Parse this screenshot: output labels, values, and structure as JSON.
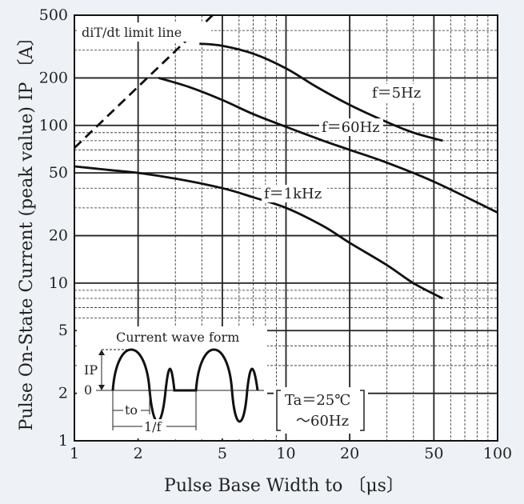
{
  "chart_data": {
    "type": "line",
    "xlabel": "Pulse Base Width  to 〔μs〕",
    "ylabel": "Pulse On-State Current (peak value)  IP 〔A〕",
    "x_scale": "log",
    "y_scale": "log",
    "xlim": [
      1,
      100
    ],
    "ylim": [
      1,
      500
    ],
    "x_ticks": [
      1,
      2,
      5,
      10,
      20,
      50,
      100
    ],
    "x_tick_labels": [
      "1",
      "2",
      "5",
      "10",
      "20",
      "50",
      "100"
    ],
    "y_ticks": [
      1,
      2,
      5,
      10,
      20,
      50,
      100,
      200,
      500
    ],
    "y_tick_labels": [
      "1",
      "2",
      "5",
      "10",
      "20",
      "50",
      "100",
      "200",
      "500"
    ],
    "grid": true,
    "series": [
      {
        "name": "f＝5Hz",
        "x": [
          3.9,
          5,
          7,
          10,
          14,
          20,
          30,
          40,
          55
        ],
        "y": [
          330,
          320,
          285,
          230,
          175,
          135,
          105,
          90,
          80
        ]
      },
      {
        "name": "f＝60Hz",
        "x": [
          2.5,
          3.5,
          5,
          7,
          10,
          15,
          20,
          30,
          50,
          100
        ],
        "y": [
          200,
          175,
          145,
          118,
          98,
          80,
          70,
          58,
          44,
          28
        ]
      },
      {
        "name": "f＝1kHz",
        "x": [
          1,
          1.5,
          2,
          3,
          5,
          7,
          10,
          15,
          20,
          30,
          40,
          55
        ],
        "y": [
          55,
          52,
          50,
          46,
          40,
          35,
          30,
          23,
          18,
          13,
          10,
          8
        ]
      }
    ],
    "limit_line": {
      "name": "diT/dt limit line",
      "x": [
        1,
        4.5
      ],
      "y": [
        72,
        500
      ]
    },
    "inset": {
      "title": "Current wave form",
      "ip_label": "IP",
      "zero_label": "0",
      "to_label": "to",
      "period_label": "1/f"
    },
    "conditions": {
      "line1": "Ta＝25℃",
      "line2": "～60Hz"
    }
  }
}
